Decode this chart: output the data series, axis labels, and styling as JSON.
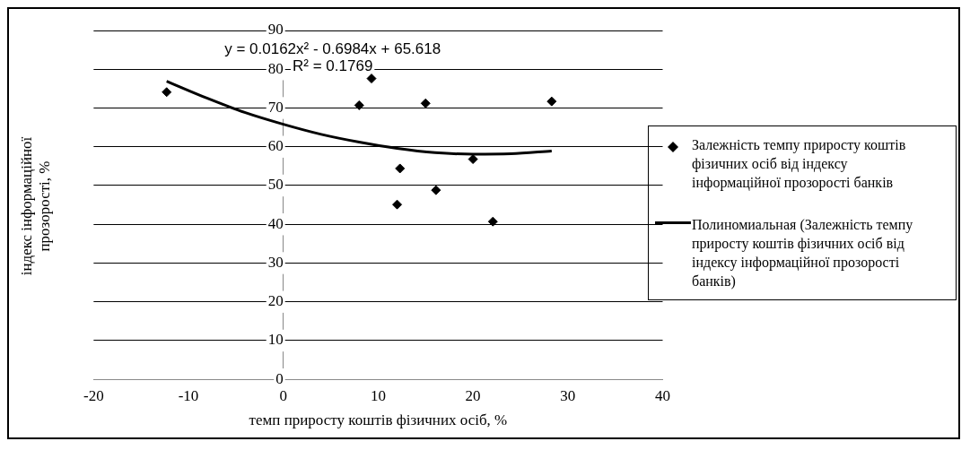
{
  "chart_data": {
    "type": "scatter",
    "xlabel": "темп приросту коштів фізичних осіб, %",
    "ylabel": "індекс інформаційної прозорості, %",
    "xlim": [
      -20,
      40
    ],
    "xticks": [
      -20,
      -10,
      0,
      10,
      20,
      30,
      40
    ],
    "ylim": [
      0,
      90
    ],
    "yticks": [
      0,
      10,
      20,
      30,
      40,
      50,
      60,
      70,
      80,
      90
    ],
    "grid": "y",
    "legend": "right",
    "marker": "diamond",
    "annotations": [
      "y = 0.0162x² - 0.6984x + 65.618",
      "R² = 0.1769"
    ],
    "series": [
      {
        "name": "Залежність темпу приросту коштів фізичних осіб від індексу інформаційної  прозорості банків",
        "color": "#000000",
        "x": [
          -12.3,
          8.0,
          9.3,
          15.0,
          28.3,
          12.3,
          12.0,
          16.1,
          20.0,
          22.1
        ],
        "values": [
          74.1,
          70.7,
          77.6,
          71.2,
          71.7,
          54.4,
          45.1,
          48.8,
          56.8,
          40.7
        ]
      },
      {
        "name": "Полиномиальная (Залежність темпу приросту коштів фізичних осіб від індексу інформаційної прозорості банків)",
        "color": "#000000",
        "type": "line",
        "marker": "none",
        "x": [
          -12.3,
          -8,
          -4,
          0,
          4,
          8,
          12,
          16,
          20,
          24,
          28.3
        ],
        "values": [
          76.9,
          72.5,
          68.8,
          65.8,
          63.2,
          61.2,
          59.6,
          58.5,
          58.1,
          58.2,
          58.9
        ]
      }
    ]
  }
}
